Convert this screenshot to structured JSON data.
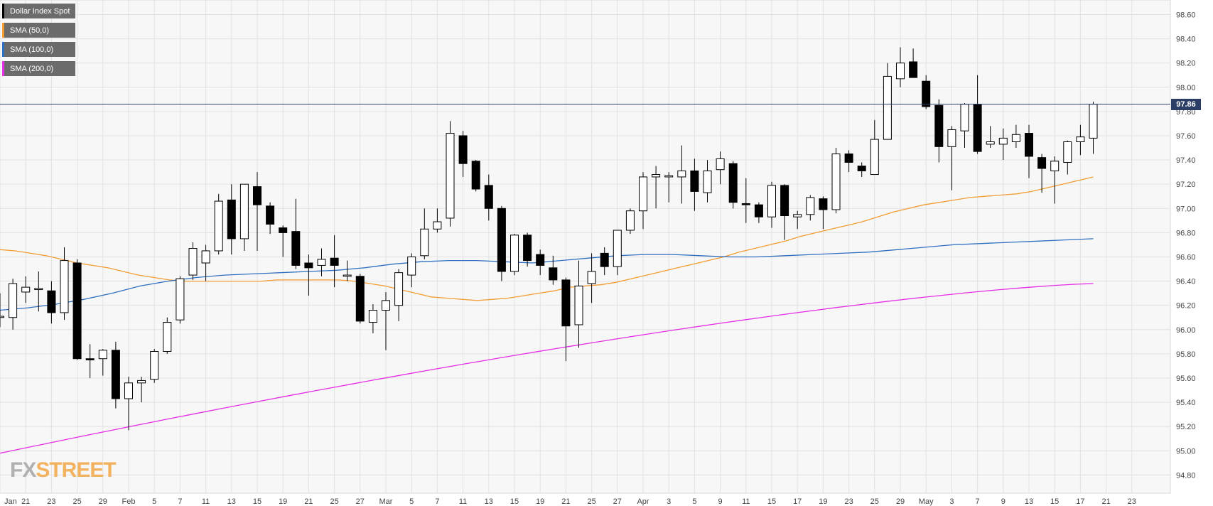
{
  "legend": [
    {
      "label": "Dollar Index Spot",
      "color": "#000000"
    },
    {
      "label": "SMA (50,0)",
      "color": "#f39c32"
    },
    {
      "label": "SMA (100,0)",
      "color": "#2f6fc0"
    },
    {
      "label": "SMA (200,0)",
      "color": "#e52ee5"
    }
  ],
  "brand": {
    "fx": "FX",
    "street": "STREET"
  },
  "last_price": {
    "value": 97.86,
    "label": "97.86"
  },
  "chart_data": {
    "type": "candlestick",
    "y_ticks": [
      "98.60",
      "98.40",
      "98.20",
      "98.00",
      "97.80",
      "97.60",
      "97.40",
      "97.20",
      "97.00",
      "96.80",
      "96.60",
      "96.40",
      "96.20",
      "96.00",
      "95.80",
      "95.60",
      "95.40",
      "95.20",
      "95.00",
      "94.80"
    ],
    "ylim": [
      94.65,
      98.72
    ],
    "x_ticks": [
      "Jan",
      "21",
      "23",
      "25",
      "29",
      "Feb",
      "5",
      "7",
      "11",
      "13",
      "15",
      "19",
      "21",
      "25",
      "27",
      "Mar",
      "5",
      "7",
      "11",
      "13",
      "15",
      "19",
      "21",
      "25",
      "27",
      "Apr",
      "3",
      "5",
      "9",
      "11",
      "15",
      "17",
      "19",
      "23",
      "25",
      "29",
      "May",
      "3",
      "7",
      "9",
      "13",
      "15",
      "17",
      "21",
      "23"
    ],
    "candles": [
      {
        "o": 96.1,
        "h": 96.3,
        "l": 96.02,
        "c": 96.11
      },
      {
        "o": 96.1,
        "h": 96.42,
        "l": 96.0,
        "c": 96.38
      },
      {
        "o": 96.31,
        "h": 96.44,
        "l": 96.22,
        "c": 96.35
      },
      {
        "o": 96.33,
        "h": 96.48,
        "l": 96.15,
        "c": 96.34
      },
      {
        "o": 96.32,
        "h": 96.4,
        "l": 96.05,
        "c": 96.14
      },
      {
        "o": 96.14,
        "h": 96.68,
        "l": 96.08,
        "c": 96.57
      },
      {
        "o": 96.55,
        "h": 96.58,
        "l": 95.75,
        "c": 95.76
      },
      {
        "o": 95.76,
        "h": 95.88,
        "l": 95.6,
        "c": 95.75
      },
      {
        "o": 95.76,
        "h": 95.84,
        "l": 95.62,
        "c": 95.83
      },
      {
        "o": 95.83,
        "h": 95.9,
        "l": 95.35,
        "c": 95.43
      },
      {
        "o": 95.43,
        "h": 95.61,
        "l": 95.17,
        "c": 95.56
      },
      {
        "o": 95.56,
        "h": 95.61,
        "l": 95.4,
        "c": 95.58
      },
      {
        "o": 95.59,
        "h": 95.84,
        "l": 95.56,
        "c": 95.82
      },
      {
        "o": 95.82,
        "h": 96.1,
        "l": 95.8,
        "c": 96.06
      },
      {
        "o": 96.08,
        "h": 96.44,
        "l": 96.05,
        "c": 96.42
      },
      {
        "o": 96.45,
        "h": 96.72,
        "l": 96.41,
        "c": 96.67
      },
      {
        "o": 96.55,
        "h": 96.7,
        "l": 96.4,
        "c": 96.65
      },
      {
        "o": 96.65,
        "h": 97.12,
        "l": 96.62,
        "c": 97.06
      },
      {
        "o": 97.07,
        "h": 97.2,
        "l": 96.62,
        "c": 96.75
      },
      {
        "o": 96.75,
        "h": 97.2,
        "l": 96.65,
        "c": 97.2
      },
      {
        "o": 97.18,
        "h": 97.3,
        "l": 96.65,
        "c": 97.03
      },
      {
        "o": 97.02,
        "h": 97.05,
        "l": 96.79,
        "c": 96.87
      },
      {
        "o": 96.84,
        "h": 96.86,
        "l": 96.6,
        "c": 96.8
      },
      {
        "o": 96.81,
        "h": 97.08,
        "l": 96.5,
        "c": 96.53
      },
      {
        "o": 96.55,
        "h": 96.62,
        "l": 96.28,
        "c": 96.51
      },
      {
        "o": 96.53,
        "h": 96.67,
        "l": 96.44,
        "c": 96.58
      },
      {
        "o": 96.59,
        "h": 96.78,
        "l": 96.35,
        "c": 96.53
      },
      {
        "o": 96.44,
        "h": 96.57,
        "l": 96.4,
        "c": 96.45
      },
      {
        "o": 96.44,
        "h": 96.46,
        "l": 96.05,
        "c": 96.07
      },
      {
        "o": 96.06,
        "h": 96.21,
        "l": 95.97,
        "c": 96.16
      },
      {
        "o": 96.16,
        "h": 96.31,
        "l": 95.83,
        "c": 96.24
      },
      {
        "o": 96.2,
        "h": 96.5,
        "l": 96.07,
        "c": 96.47
      },
      {
        "o": 96.45,
        "h": 96.63,
        "l": 96.35,
        "c": 96.6
      },
      {
        "o": 96.61,
        "h": 97.0,
        "l": 96.58,
        "c": 96.83
      },
      {
        "o": 96.83,
        "h": 97.0,
        "l": 96.8,
        "c": 96.89
      },
      {
        "o": 96.92,
        "h": 97.72,
        "l": 96.85,
        "c": 97.62
      },
      {
        "o": 97.6,
        "h": 97.64,
        "l": 97.26,
        "c": 97.37
      },
      {
        "o": 97.39,
        "h": 97.4,
        "l": 97.14,
        "c": 97.16
      },
      {
        "o": 97.19,
        "h": 97.28,
        "l": 96.9,
        "c": 97.0
      },
      {
        "o": 97.0,
        "h": 97.02,
        "l": 96.4,
        "c": 96.48
      },
      {
        "o": 96.48,
        "h": 96.79,
        "l": 96.45,
        "c": 96.78
      },
      {
        "o": 96.78,
        "h": 96.8,
        "l": 96.52,
        "c": 96.57
      },
      {
        "o": 96.62,
        "h": 96.66,
        "l": 96.45,
        "c": 96.53
      },
      {
        "o": 96.51,
        "h": 96.61,
        "l": 96.37,
        "c": 96.41
      },
      {
        "o": 96.41,
        "h": 96.43,
        "l": 95.74,
        "c": 96.03
      },
      {
        "o": 96.04,
        "h": 96.57,
        "l": 95.85,
        "c": 96.36
      },
      {
        "o": 96.38,
        "h": 96.63,
        "l": 96.22,
        "c": 96.48
      },
      {
        "o": 96.63,
        "h": 96.68,
        "l": 96.45,
        "c": 96.52
      },
      {
        "o": 96.52,
        "h": 96.82,
        "l": 96.45,
        "c": 96.82
      },
      {
        "o": 96.82,
        "h": 97.0,
        "l": 96.79,
        "c": 96.98
      },
      {
        "o": 96.98,
        "h": 97.3,
        "l": 96.83,
        "c": 97.26
      },
      {
        "o": 97.26,
        "h": 97.35,
        "l": 97.0,
        "c": 97.28
      },
      {
        "o": 97.26,
        "h": 97.3,
        "l": 97.05,
        "c": 97.27
      },
      {
        "o": 97.26,
        "h": 97.52,
        "l": 97.04,
        "c": 97.31
      },
      {
        "o": 97.31,
        "h": 97.41,
        "l": 96.98,
        "c": 97.14
      },
      {
        "o": 97.13,
        "h": 97.4,
        "l": 97.05,
        "c": 97.31
      },
      {
        "o": 97.32,
        "h": 97.47,
        "l": 97.2,
        "c": 97.41
      },
      {
        "o": 97.37,
        "h": 97.39,
        "l": 97.0,
        "c": 97.05
      },
      {
        "o": 97.04,
        "h": 97.25,
        "l": 96.88,
        "c": 97.03
      },
      {
        "o": 97.03,
        "h": 97.05,
        "l": 96.88,
        "c": 96.93
      },
      {
        "o": 96.93,
        "h": 97.22,
        "l": 96.84,
        "c": 97.19
      },
      {
        "o": 97.19,
        "h": 97.2,
        "l": 96.74,
        "c": 96.94
      },
      {
        "o": 96.93,
        "h": 96.98,
        "l": 96.83,
        "c": 96.95
      },
      {
        "o": 96.95,
        "h": 97.11,
        "l": 96.9,
        "c": 97.09
      },
      {
        "o": 97.08,
        "h": 97.1,
        "l": 96.83,
        "c": 96.99
      },
      {
        "o": 96.99,
        "h": 97.5,
        "l": 96.96,
        "c": 97.45
      },
      {
        "o": 97.45,
        "h": 97.48,
        "l": 97.3,
        "c": 97.38
      },
      {
        "o": 97.35,
        "h": 97.38,
        "l": 97.26,
        "c": 97.31
      },
      {
        "o": 97.28,
        "h": 97.73,
        "l": 97.28,
        "c": 97.57
      },
      {
        "o": 97.57,
        "h": 98.2,
        "l": 97.57,
        "c": 98.09
      },
      {
        "o": 98.07,
        "h": 98.33,
        "l": 98.0,
        "c": 98.2
      },
      {
        "o": 98.21,
        "h": 98.32,
        "l": 98.08,
        "c": 98.08
      },
      {
        "o": 98.05,
        "h": 98.1,
        "l": 97.82,
        "c": 97.84
      },
      {
        "o": 97.85,
        "h": 97.9,
        "l": 97.38,
        "c": 97.51
      },
      {
        "o": 97.51,
        "h": 97.68,
        "l": 97.15,
        "c": 97.65
      },
      {
        "o": 97.64,
        "h": 97.87,
        "l": 97.5,
        "c": 97.86
      },
      {
        "o": 97.86,
        "h": 98.1,
        "l": 97.45,
        "c": 97.47
      },
      {
        "o": 97.53,
        "h": 97.68,
        "l": 97.5,
        "c": 97.55
      },
      {
        "o": 97.53,
        "h": 97.66,
        "l": 97.4,
        "c": 97.58
      },
      {
        "o": 97.55,
        "h": 97.69,
        "l": 97.5,
        "c": 97.61
      },
      {
        "o": 97.62,
        "h": 97.69,
        "l": 97.25,
        "c": 97.43
      },
      {
        "o": 97.42,
        "h": 97.45,
        "l": 97.13,
        "c": 97.33
      },
      {
        "o": 97.31,
        "h": 97.43,
        "l": 97.04,
        "c": 97.39
      },
      {
        "o": 97.38,
        "h": 97.56,
        "l": 97.28,
        "c": 97.55
      },
      {
        "o": 97.55,
        "h": 97.69,
        "l": 97.44,
        "c": 97.59
      },
      {
        "o": 97.58,
        "h": 97.88,
        "l": 97.45,
        "c": 97.86
      }
    ],
    "sma50": [
      96.66,
      96.65,
      96.63,
      96.61,
      96.58,
      96.55,
      96.53,
      96.51,
      96.48,
      96.45,
      96.43,
      96.41,
      96.4,
      96.4,
      96.4,
      96.4,
      96.4,
      96.4,
      96.41,
      96.41,
      96.41,
      96.41,
      96.41,
      96.4,
      96.38,
      96.36,
      96.33,
      96.3,
      96.27,
      96.26,
      96.25,
      96.24,
      96.25,
      96.26,
      96.28,
      96.3,
      96.32,
      96.35,
      96.36,
      96.37,
      96.39,
      96.42,
      96.45,
      96.48,
      96.51,
      96.54,
      96.57,
      96.6,
      96.64,
      96.67,
      96.7,
      96.73,
      96.77,
      96.8,
      96.83,
      96.86,
      96.89,
      96.93,
      96.97,
      97.0,
      97.03,
      97.05,
      97.07,
      97.09,
      97.1,
      97.11,
      97.12,
      97.14,
      97.17,
      97.2,
      97.23,
      97.26
    ],
    "sma100": [
      96.16,
      96.18,
      96.21,
      96.25,
      96.3,
      96.36,
      96.4,
      96.43,
      96.45,
      96.46,
      96.47,
      96.48,
      96.49,
      96.51,
      96.54,
      96.56,
      96.57,
      96.57,
      96.56,
      96.55,
      96.57,
      96.59,
      96.61,
      96.62,
      96.62,
      96.61,
      96.6,
      96.6,
      96.61,
      96.62,
      96.63,
      96.64,
      96.66,
      96.68,
      96.7,
      96.71,
      96.72,
      96.73,
      96.74,
      96.75
    ]
  }
}
